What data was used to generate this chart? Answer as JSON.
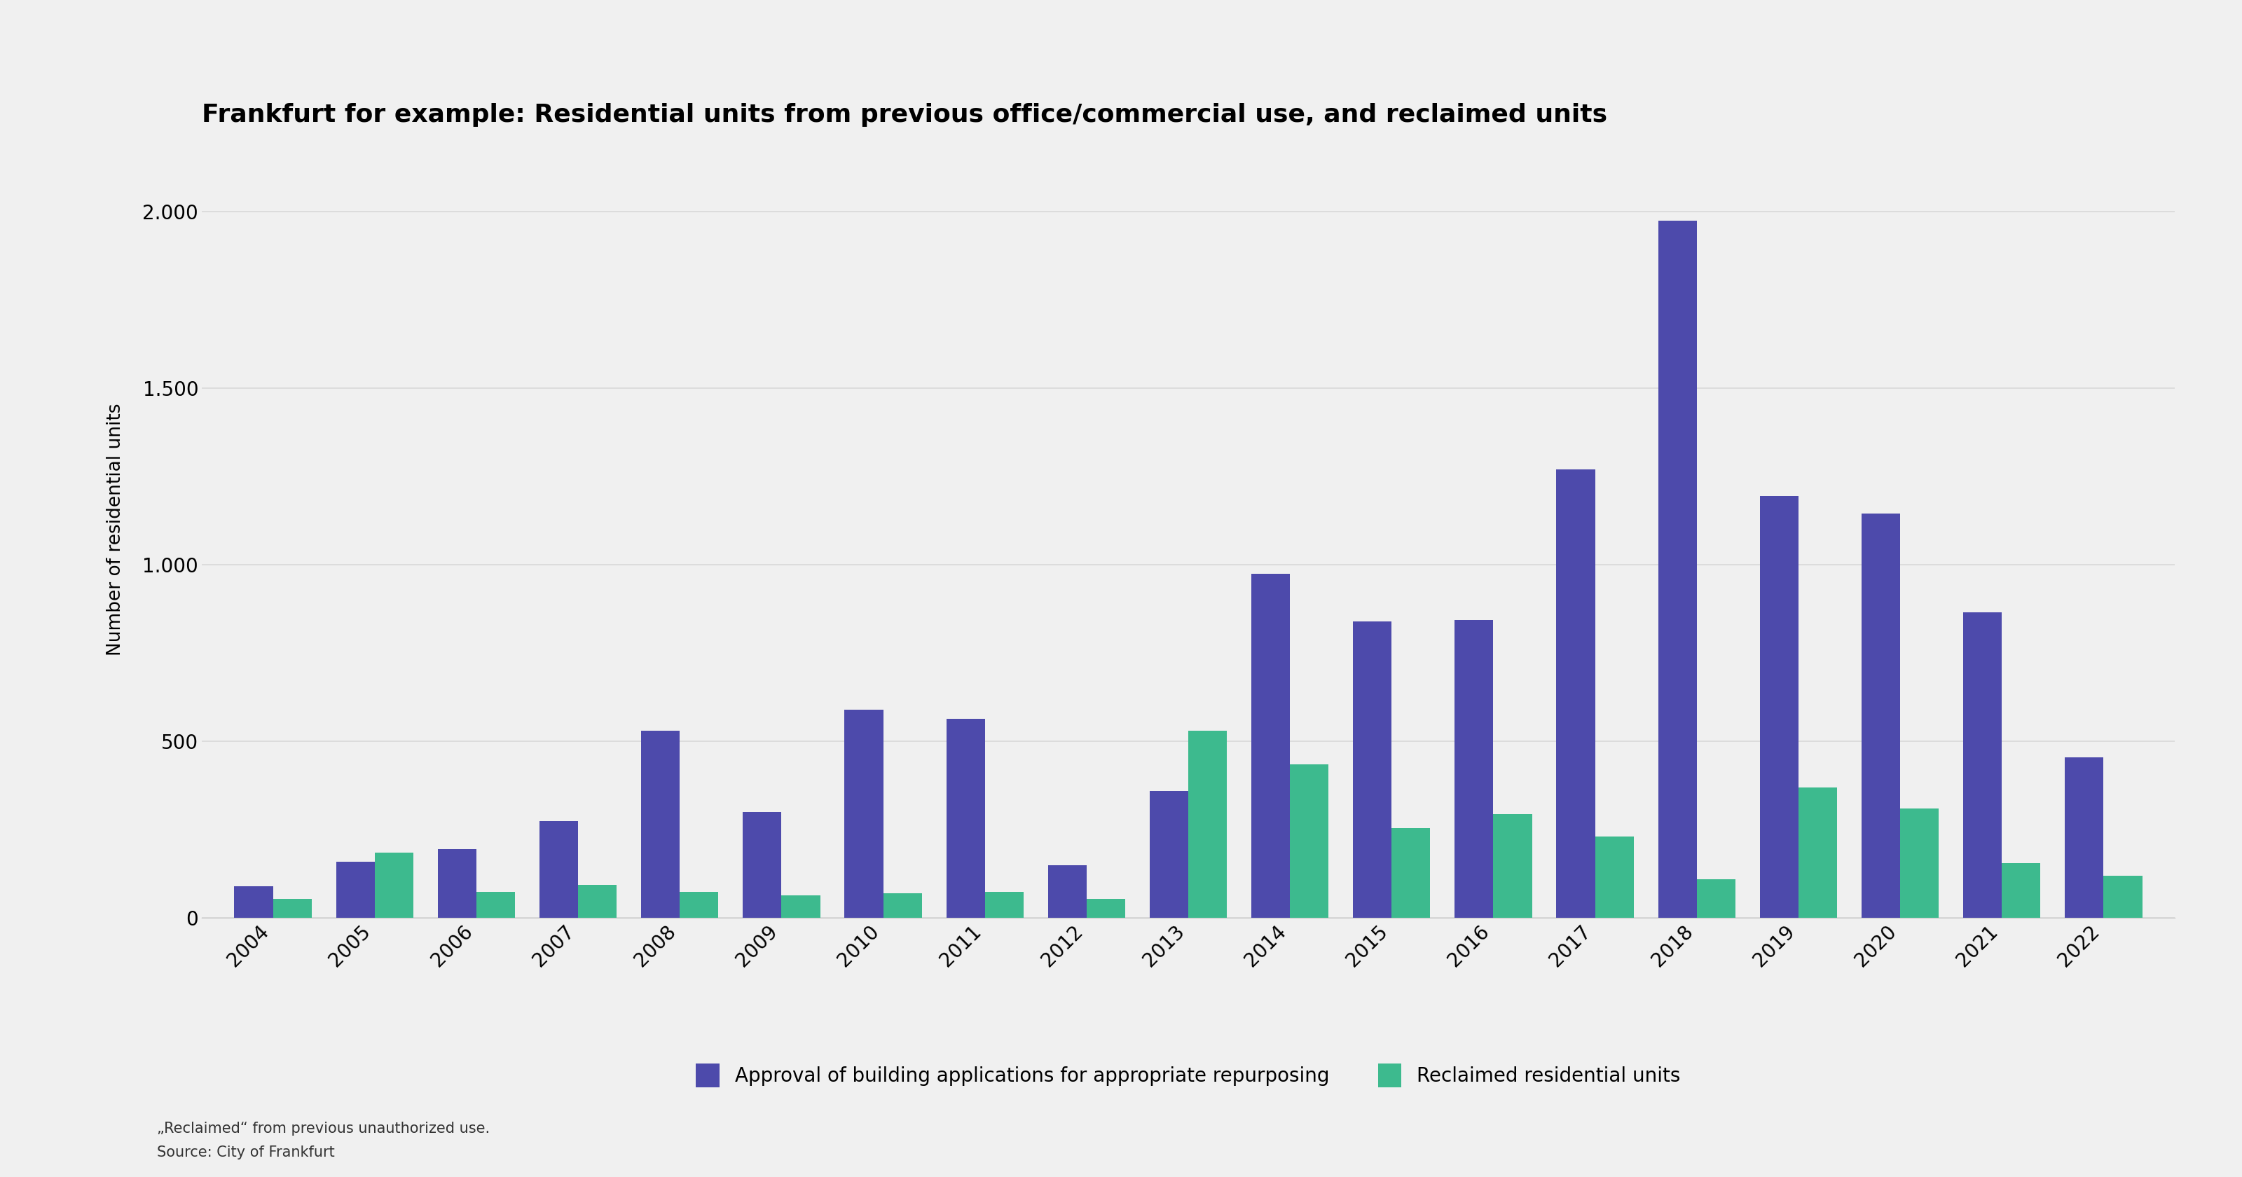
{
  "title": "Frankfurt for example: Residential units from previous office/commercial use, and reclaimed units",
  "ylabel": "Number of residential units",
  "years": [
    2004,
    2005,
    2006,
    2007,
    2008,
    2009,
    2010,
    2011,
    2012,
    2013,
    2014,
    2015,
    2016,
    2017,
    2018,
    2019,
    2020,
    2021,
    2022
  ],
  "approval": [
    90,
    160,
    195,
    275,
    530,
    300,
    590,
    565,
    150,
    360,
    975,
    840,
    845,
    1270,
    1975,
    1195,
    1145,
    865,
    455
  ],
  "reclaimed": [
    55,
    185,
    75,
    95,
    75,
    65,
    70,
    75,
    55,
    530,
    435,
    255,
    295,
    230,
    110,
    370,
    310,
    155,
    120
  ],
  "bar_color_approval": "#4d4aab",
  "bar_color_reclaimed": "#3dba8e",
  "background_color": "#f0f0f0",
  "grid_color": "#d8d8d8",
  "legend_label_approval": "Approval of building applications for appropriate repurposing",
  "legend_label_reclaimed": "Reclaimed residential units",
  "footnote_line1": "„Reclaimed“ from previous unauthorized use.",
  "footnote_line2": "Source: City of Frankfurt",
  "ylim": [
    0,
    2200
  ],
  "yticks": [
    0,
    500,
    1000,
    1500,
    2000
  ],
  "title_fontsize": 26,
  "axis_fontsize": 19,
  "tick_fontsize": 20,
  "legend_fontsize": 20,
  "footnote_fontsize": 15
}
